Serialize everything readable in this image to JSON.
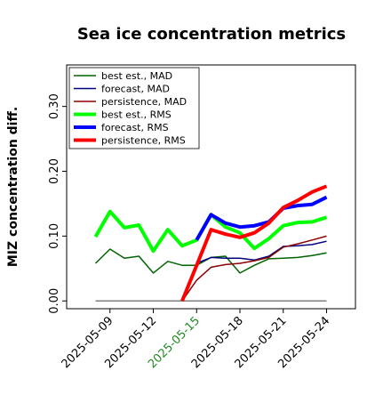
{
  "chart_data": {
    "type": "line",
    "title": "Sea ice concentration metrics",
    "y_label": "MIZ concentration diff.",
    "x": [
      "2025-05-08",
      "2025-05-09",
      "2025-05-10",
      "2025-05-11",
      "2025-05-12",
      "2025-05-13",
      "2025-05-14",
      "2025-05-15",
      "2025-05-16",
      "2025-05-17",
      "2025-05-18",
      "2025-05-19",
      "2025-05-20",
      "2025-05-21",
      "2025-05-22",
      "2025-05-23",
      "2025-05-24"
    ],
    "series": [
      {
        "name": "best est., MAD",
        "color": "#006400",
        "linewidth": 1.5,
        "values": [
          0.058,
          0.08,
          0.066,
          0.069,
          0.043,
          0.061,
          0.055,
          0.055,
          0.067,
          0.069,
          0.043,
          0.055,
          0.065,
          0.066,
          0.067,
          0.07,
          0.074
        ]
      },
      {
        "name": "forecast, MAD",
        "color": "#000080",
        "linewidth": 1.5,
        "values": [
          null,
          null,
          null,
          null,
          null,
          null,
          null,
          0.058,
          0.067,
          0.066,
          0.066,
          0.063,
          0.069,
          0.084,
          0.085,
          0.087,
          0.092
        ]
      },
      {
        "name": "persistence, MAD",
        "color": "#8b0000",
        "linewidth": 1.5,
        "values": [
          null,
          null,
          null,
          null,
          null,
          null,
          0.0,
          0.032,
          0.052,
          0.056,
          0.058,
          0.062,
          0.067,
          0.083,
          0.088,
          0.094,
          0.1
        ]
      },
      {
        "name": "best est., RMS",
        "color": "#00ff00",
        "linewidth": 4,
        "values": [
          0.099,
          0.138,
          0.113,
          0.117,
          0.077,
          0.11,
          0.085,
          0.094,
          0.133,
          0.114,
          0.105,
          0.081,
          0.096,
          0.116,
          0.121,
          0.122,
          0.129
        ]
      },
      {
        "name": "forecast, RMS",
        "color": "#0000ff",
        "linewidth": 4,
        "values": [
          null,
          null,
          null,
          null,
          null,
          null,
          null,
          0.094,
          0.133,
          0.12,
          0.114,
          0.116,
          0.122,
          0.143,
          0.147,
          0.149,
          0.16
        ]
      },
      {
        "name": "persistence, RMS",
        "color": "#ff0000",
        "linewidth": 4,
        "values": [
          null,
          null,
          null,
          null,
          null,
          null,
          0.0,
          0.055,
          0.11,
          0.103,
          0.098,
          0.105,
          0.12,
          0.144,
          0.155,
          0.168,
          0.177
        ]
      }
    ],
    "hline": {
      "value": 0,
      "color": "#808080"
    },
    "xlim": [
      "2025-05-06",
      "2025-05-26"
    ],
    "xticks": [
      "2025-05-09",
      "2025-05-12",
      "2025-05-15",
      "2025-05-18",
      "2025-05-21",
      "2025-05-24"
    ],
    "highlight_xtick": "2025-05-15",
    "highlight_color": "#228b22",
    "ylim": [
      -0.012,
      0.364
    ],
    "yticks": [
      {
        "value": 0,
        "label": "0.00"
      },
      {
        "value": 0.1,
        "label": "0.10"
      },
      {
        "value": 0.2,
        "label": "0.20"
      },
      {
        "value": 0.3,
        "label": "0.30"
      }
    ],
    "legend": "upper left",
    "grid": false
  }
}
